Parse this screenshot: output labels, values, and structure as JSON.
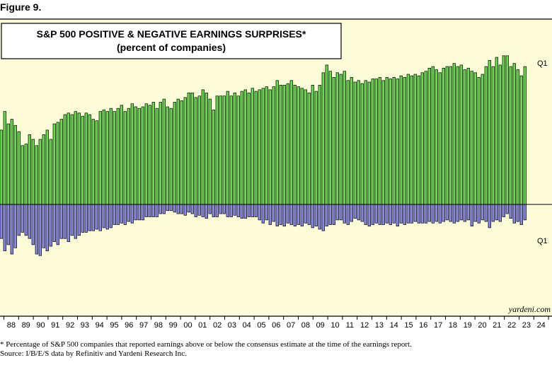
{
  "figure_label": "Figure 9.",
  "chart_data": {
    "type": "bar",
    "title": "S&P 500 POSITIVE & NEGATIVE EARNINGS SURPRISES*",
    "subtitle": "(percent of companies)",
    "x_tick_labels": [
      "88",
      "89",
      "90",
      "91",
      "92",
      "93",
      "94",
      "95",
      "96",
      "97",
      "98",
      "99",
      "00",
      "01",
      "02",
      "03",
      "04",
      "05",
      "06",
      "07",
      "08",
      "09",
      "10",
      "11",
      "12",
      "13",
      "14",
      "15",
      "16",
      "17",
      "18",
      "19",
      "20",
      "21",
      "22",
      "23",
      "24"
    ],
    "end_labels": {
      "positive": "Q1",
      "negative": "Q1"
    },
    "watermark": "yardeni.com",
    "series": [
      {
        "polarity": "positive",
        "color": "#66e04a",
        "values": [
          48,
          60,
          52,
          55,
          51,
          47,
          38,
          39,
          45,
          42,
          38,
          42,
          45,
          48,
          42,
          52,
          53,
          55,
          58,
          59,
          58,
          60,
          59,
          57,
          59,
          58,
          55,
          54,
          60,
          61,
          60,
          62,
          60,
          62,
          64,
          60,
          62,
          65,
          63,
          62,
          63,
          65,
          64,
          66,
          62,
          66,
          68,
          63,
          62,
          66,
          68,
          67,
          69,
          72,
          72,
          69,
          70,
          74,
          72,
          68,
          61,
          70,
          70,
          70,
          73,
          70,
          72,
          70,
          73,
          74,
          72,
          75,
          73,
          74,
          75,
          76,
          74,
          76,
          80,
          77,
          77,
          78,
          80,
          77,
          76,
          75,
          74,
          72,
          77,
          73,
          77,
          85,
          90,
          86,
          82,
          85,
          84,
          86,
          80,
          82,
          79,
          80,
          78,
          80,
          79,
          81,
          81,
          82,
          80,
          82,
          81,
          82,
          81,
          83,
          82,
          84,
          83,
          84,
          83,
          85,
          86,
          88,
          89,
          87,
          85,
          88,
          89,
          89,
          91,
          89,
          90,
          87,
          88,
          86,
          85,
          82,
          84,
          89,
          93,
          89,
          95,
          90,
          96,
          96,
          89,
          91,
          87,
          83,
          89
        ]
      },
      {
        "polarity": "negative",
        "color": "#8888ee",
        "values": [
          22,
          30,
          26,
          32,
          28,
          20,
          18,
          20,
          22,
          26,
          32,
          33,
          28,
          30,
          27,
          24,
          26,
          22,
          22,
          24,
          20,
          22,
          20,
          18,
          18,
          17,
          17,
          16,
          17,
          15,
          16,
          15,
          13,
          13,
          12,
          13,
          11,
          12,
          10,
          10,
          10,
          8,
          8,
          8,
          8,
          6,
          6,
          4,
          4,
          5,
          6,
          6,
          7,
          5,
          6,
          8,
          7,
          8,
          9,
          6,
          8,
          8,
          6,
          6,
          8,
          8,
          7,
          8,
          9,
          9,
          8,
          8,
          8,
          10,
          12,
          10,
          13,
          11,
          14,
          13,
          14,
          12,
          13,
          14,
          13,
          14,
          12,
          13,
          15,
          14,
          16,
          17,
          14,
          13,
          13,
          10,
          10,
          12,
          13,
          11,
          9,
          10,
          11,
          13,
          14,
          13,
          12,
          13,
          13,
          12,
          13,
          12,
          14,
          12,
          13,
          12,
          12,
          11,
          12,
          12,
          12,
          11,
          12,
          11,
          12,
          11,
          10,
          11,
          12,
          11,
          10,
          11,
          10,
          14,
          11,
          12,
          10,
          11,
          15,
          11,
          10,
          11,
          8,
          6,
          9,
          12,
          11,
          13,
          10
        ]
      }
    ]
  },
  "notes": [
    "* Percentage of S&P 500 companies that reported earnings above or below the consensus estimate at the time of the earnings report.",
    "Source: I/B/E/S data by Refinitiv and Yardeni Research Inc."
  ]
}
